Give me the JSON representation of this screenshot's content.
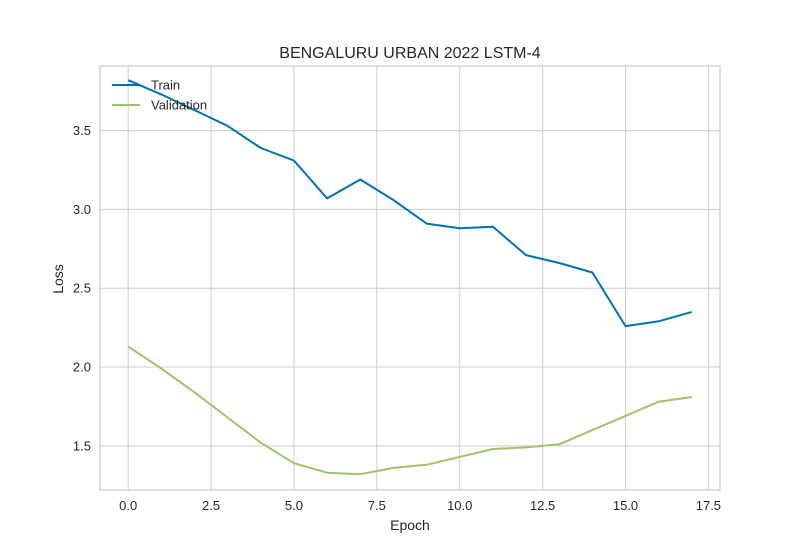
{
  "chart_data": {
    "type": "line",
    "title": "BENGALURU URBAN 2022 LSTM-4",
    "xlabel": "Epoch",
    "ylabel": "Loss",
    "x": [
      0,
      1,
      2,
      3,
      4,
      5,
      6,
      7,
      8,
      9,
      10,
      11,
      12,
      13,
      14,
      15,
      16,
      17
    ],
    "xlim": [
      -0.85,
      17.85
    ],
    "ylim": [
      1.22,
      3.91
    ],
    "xticks": [
      0.0,
      2.5,
      5.0,
      7.5,
      10.0,
      12.5,
      15.0,
      17.5
    ],
    "xtick_labels": [
      "0.0",
      "2.5",
      "5.0",
      "7.5",
      "10.0",
      "12.5",
      "15.0",
      "17.5"
    ],
    "yticks": [
      1.5,
      2.0,
      2.5,
      3.0,
      3.5
    ],
    "ytick_labels": [
      "1.5",
      "2.0",
      "2.5",
      "3.0",
      "3.5"
    ],
    "grid": true,
    "legend_position": "top-left",
    "series": [
      {
        "name": "Train",
        "color": "#0072B2",
        "values": [
          3.82,
          3.73,
          3.63,
          3.53,
          3.39,
          3.31,
          3.07,
          3.19,
          3.06,
          2.91,
          2.88,
          2.89,
          2.71,
          2.66,
          2.6,
          2.26,
          2.29,
          2.35
        ]
      },
      {
        "name": "Validation",
        "color": "#9BC46F",
        "values": [
          2.13,
          1.99,
          1.84,
          1.68,
          1.52,
          1.39,
          1.33,
          1.32,
          1.36,
          1.38,
          1.43,
          1.48,
          1.49,
          1.51,
          1.6,
          1.69,
          1.78,
          1.81
        ]
      }
    ]
  }
}
